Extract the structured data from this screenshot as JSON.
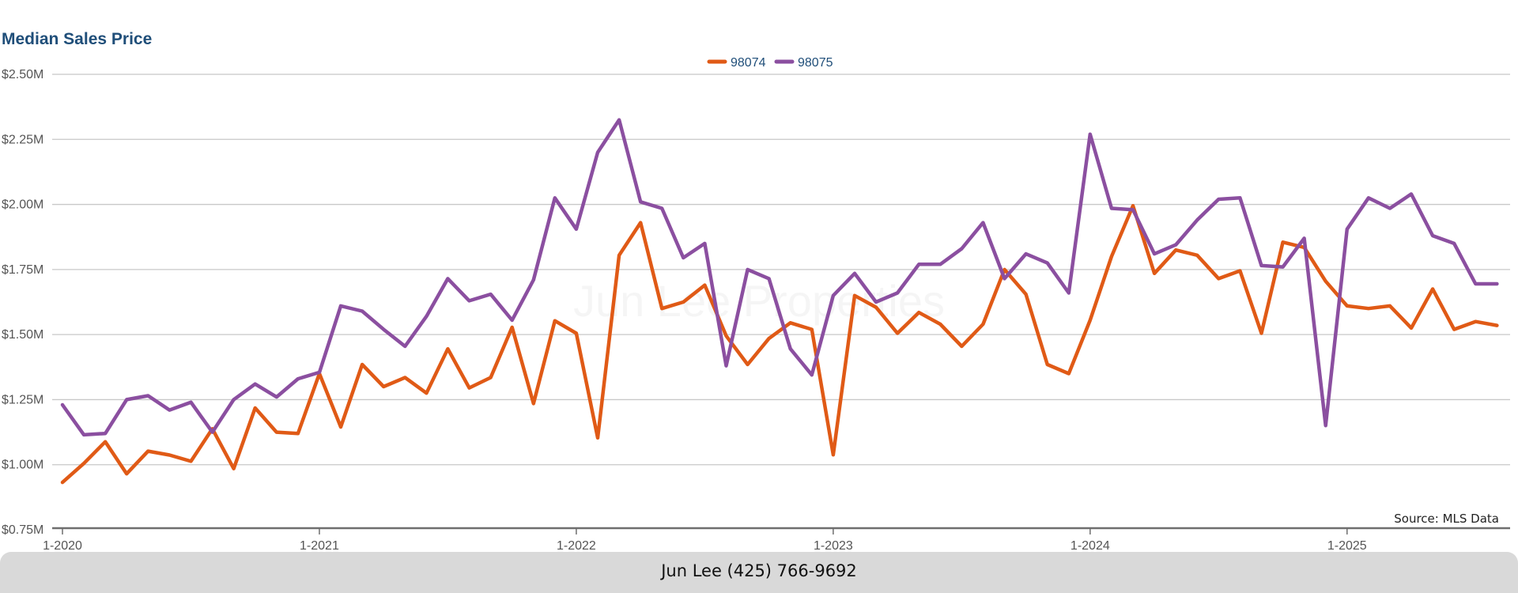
{
  "chart_data": {
    "type": "line",
    "title": "Median Sales Price",
    "xlabel": "",
    "ylabel": "",
    "ylim": [
      750000,
      2500000
    ],
    "y_ticks": [
      750000,
      1000000,
      1250000,
      1500000,
      1750000,
      2000000,
      2250000,
      2500000
    ],
    "y_tick_labels": [
      "$0.75M",
      "$1.00M",
      "$1.25M",
      "$1.50M",
      "$1.75M",
      "$2.00M",
      "$2.25M",
      "$2.50M"
    ],
    "x_ticks": [
      "1-2020",
      "1-2021",
      "1-2022",
      "1-2023",
      "1-2024",
      "1-2025"
    ],
    "x_start": "1-2020",
    "x_end": "8-2025",
    "grid": true,
    "legend_position": "top-center",
    "source": "Source: MLS Data",
    "watermark": "Jun Lee Properties",
    "series": [
      {
        "name": "98074",
        "color": "#e05a16",
        "values": [
          932000,
          1005000,
          1088000,
          965000,
          1052000,
          1037000,
          1013000,
          1138000,
          985000,
          1218000,
          1125000,
          1120000,
          1350000,
          1145000,
          1385000,
          1300000,
          1335000,
          1275000,
          1445000,
          1295000,
          1335000,
          1528000,
          1235000,
          1553000,
          1505000,
          1103000,
          1805000,
          1930000,
          1600000,
          1625000,
          1690000,
          1495000,
          1385000,
          1485000,
          1545000,
          1520000,
          1038000,
          1650000,
          1605000,
          1505000,
          1585000,
          1540000,
          1455000,
          1540000,
          1750000,
          1655000,
          1385000,
          1350000,
          1555000,
          1800000,
          1995000,
          1735000,
          1825000,
          1805000,
          1715000,
          1745000,
          1505000,
          1855000,
          1835000,
          1705000,
          1610000,
          1600000,
          1610000,
          1525000,
          1675000,
          1520000,
          1550000,
          1535000
        ]
      },
      {
        "name": "98075",
        "color": "#8b4fa0",
        "values": [
          1230000,
          1115000,
          1120000,
          1250000,
          1265000,
          1210000,
          1240000,
          1125000,
          1250000,
          1310000,
          1260000,
          1330000,
          1355000,
          1610000,
          1590000,
          1520000,
          1455000,
          1570000,
          1715000,
          1630000,
          1655000,
          1555000,
          1710000,
          2025000,
          1905000,
          2200000,
          2325000,
          2010000,
          1985000,
          1795000,
          1850000,
          1380000,
          1750000,
          1715000,
          1445000,
          1345000,
          1650000,
          1735000,
          1625000,
          1660000,
          1770000,
          1770000,
          1830000,
          1930000,
          1715000,
          1810000,
          1775000,
          1660000,
          2270000,
          1985000,
          1980000,
          1810000,
          1845000,
          1940000,
          2020000,
          2025000,
          1765000,
          1760000,
          1870000,
          1150000,
          1905000,
          2025000,
          1985000,
          2040000,
          1880000,
          1850000,
          1695000,
          1695000
        ]
      }
    ]
  },
  "footer": {
    "text": "Jun Lee (425) 766-9692"
  }
}
